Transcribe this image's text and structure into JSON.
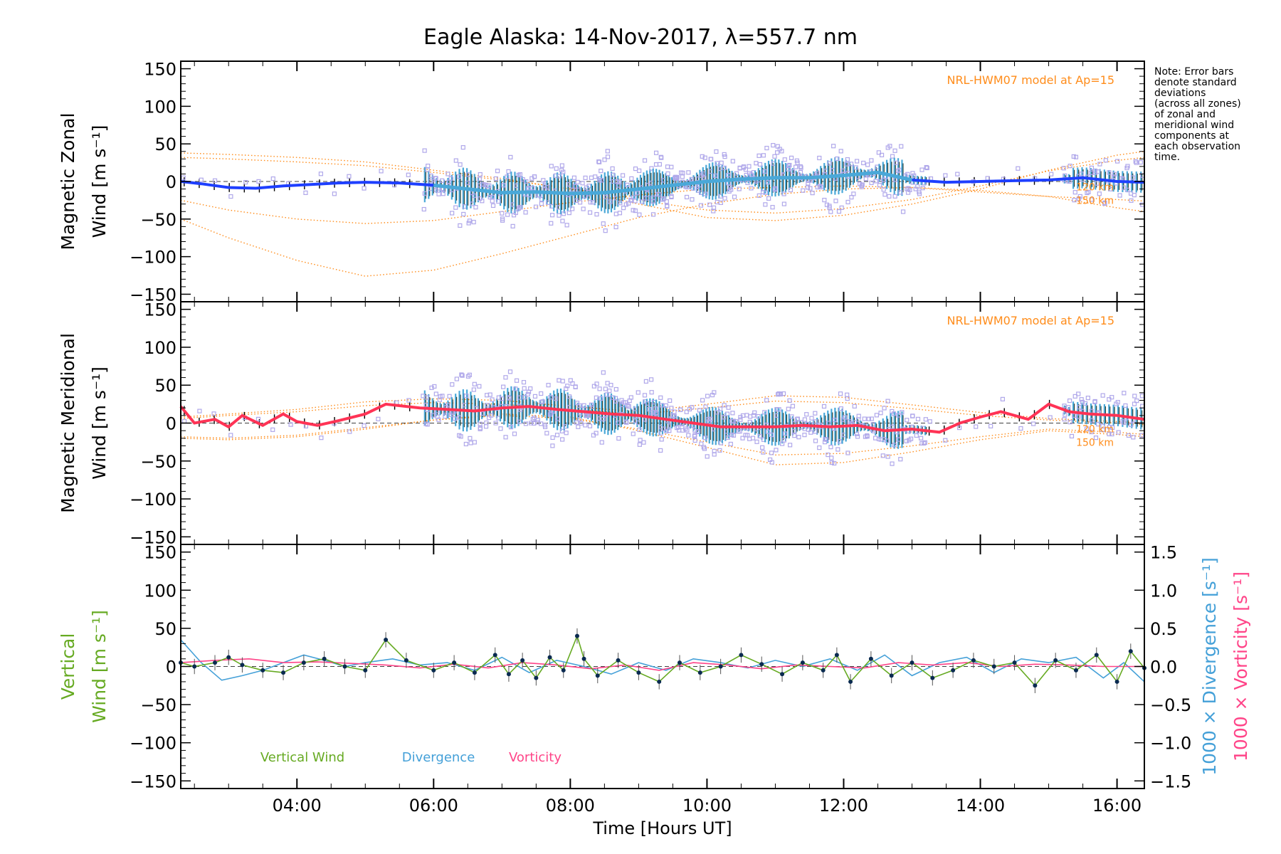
{
  "chart_data": {
    "type": "line",
    "title": "Eagle Alaska: 14-Nov-2017, λ=557.7 nm",
    "xlabel": "Time [Hours UT]",
    "xlim": [
      2.3,
      16.4
    ],
    "x_ticks": [
      4,
      6,
      8,
      10,
      12,
      14,
      16
    ],
    "x_tick_labels": [
      "04:00",
      "06:00",
      "08:00",
      "10:00",
      "12:00",
      "14:00",
      "16:00"
    ],
    "y_ticks": [
      -150,
      -100,
      -50,
      0,
      50,
      100,
      150
    ],
    "y_tick_labels": [
      "−150",
      "−100",
      "−50",
      "0",
      "50",
      "100",
      "150"
    ],
    "note_lines": [
      "Note: Error bars",
      "denote standard",
      "deviations",
      "(across all zones)",
      "of zonal and",
      "meridional wind",
      "components at",
      "each observation",
      "time."
    ],
    "colors": {
      "model": "#ff8c1a",
      "zonal_early": "#1e3fff",
      "zonal_late": "#4aa8d8",
      "meridional": "#ff3355",
      "zone_points": "#b0a8ea",
      "errorbar": "#000000",
      "vertical": "#66aa22",
      "divergence": "#44a0d8",
      "vorticity": "#ff4488",
      "dots": "#0a2a50"
    },
    "panels": [
      {
        "name": "zonal",
        "ylabel_line1": "Magnetic Zonal",
        "ylabel_line2": "Wind [m s⁻¹]",
        "ylim": [
          -160,
          160
        ],
        "model_label": "NRL-HWM07 model at Ap=15",
        "model_alt_labels": [
          "120 km",
          "150 km"
        ],
        "series": [
          {
            "role": "wind",
            "x": [
              2.3,
              2.6,
              3.0,
              3.4,
              3.8,
              4.2,
              4.6,
              5.0,
              5.5,
              6.0,
              6.5,
              7.0,
              7.5,
              8.0,
              8.5,
              9.0,
              9.5,
              10.0,
              10.5,
              11.0,
              11.5,
              12.0,
              12.5,
              13.0,
              13.5,
              14.0,
              14.5,
              15.0,
              15.5,
              16.0,
              16.4
            ],
            "y": [
              0,
              -3,
              -8,
              -9,
              -6,
              -4,
              -2,
              -1,
              -2,
              -5,
              -10,
              -15,
              -14,
              -16,
              -15,
              -10,
              -5,
              0,
              3,
              5,
              5,
              8,
              12,
              2,
              -1,
              0,
              1,
              2,
              5,
              0,
              -1
            ]
          },
          {
            "role": "model",
            "x": [
              2.3,
              3,
              4,
              5,
              6,
              7,
              8,
              9,
              10,
              11,
              12,
              13,
              14,
              15,
              16,
              16.4
            ],
            "y": [
              -50,
              -75,
              -105,
              -126,
              -118,
              -96,
              -72,
              -48,
              -30,
              -17,
              -10,
              -8,
              -12,
              -20,
              -35,
              -40
            ]
          },
          {
            "role": "model",
            "x": [
              2.3,
              3,
              4,
              5,
              6,
              7,
              8,
              9,
              10,
              11,
              12,
              13,
              14,
              15,
              16,
              16.4
            ],
            "y": [
              -25,
              -38,
              -50,
              -56,
              -52,
              -40,
              -28,
              -18,
              -10,
              -8,
              -6,
              -8,
              -14,
              -20,
              -24,
              -26
            ]
          },
          {
            "role": "model",
            "x": [
              2.3,
              3,
              4,
              5,
              6,
              7,
              8,
              9,
              10,
              11,
              12,
              13,
              14,
              15,
              16,
              16.4
            ],
            "y": [
              38,
              36,
              32,
              26,
              15,
              4,
              -10,
              -30,
              -48,
              -52,
              -45,
              -30,
              -10,
              15,
              35,
              40
            ]
          },
          {
            "role": "model",
            "x": [
              2.3,
              3,
              4,
              5,
              6,
              7,
              8,
              9,
              10,
              11,
              12,
              13,
              14,
              15,
              16,
              16.4
            ],
            "y": [
              32,
              30,
              26,
              21,
              12,
              2,
              -9,
              -25,
              -38,
              -42,
              -36,
              -24,
              -6,
              14,
              28,
              32
            ]
          }
        ]
      },
      {
        "name": "meridional",
        "ylabel_line1": "Magnetic Meridional",
        "ylabel_line2": "Wind [m s⁻¹]",
        "ylim": [
          -160,
          160
        ],
        "model_label": "NRL-HWM07 model at Ap=15",
        "model_alt_labels": [
          "120 km",
          "150 km"
        ],
        "series": [
          {
            "role": "wind",
            "x": [
              2.3,
              2.5,
              2.8,
              3.0,
              3.2,
              3.5,
              3.8,
              4.0,
              4.3,
              4.6,
              5.0,
              5.3,
              5.8,
              6.2,
              6.6,
              7.0,
              7.4,
              7.8,
              8.2,
              8.6,
              9.0,
              9.4,
              9.8,
              10.2,
              10.6,
              11.0,
              11.4,
              11.8,
              12.2,
              12.6,
              13.0,
              13.4,
              13.7,
              14.0,
              14.3,
              14.7,
              15.0,
              15.3,
              15.6,
              16.0,
              16.4
            ],
            "y": [
              22,
              0,
              5,
              -5,
              10,
              -3,
              12,
              2,
              -3,
              3,
              12,
              25,
              20,
              18,
              16,
              20,
              22,
              18,
              15,
              12,
              10,
              5,
              0,
              -5,
              -5,
              -5,
              -3,
              -5,
              -3,
              -10,
              -8,
              -12,
              0,
              8,
              15,
              5,
              25,
              15,
              12,
              10,
              5
            ]
          },
          {
            "role": "model",
            "x": [
              2.3,
              3,
              4,
              5,
              6,
              7,
              8,
              9,
              10,
              11,
              12,
              13,
              14,
              15,
              16,
              16.4
            ],
            "y": [
              -20,
              -22,
              -18,
              -8,
              4,
              12,
              8,
              -10,
              -32,
              -55,
              -52,
              -38,
              -22,
              -10,
              -15,
              -18
            ]
          },
          {
            "role": "model",
            "x": [
              2.3,
              3,
              4,
              5,
              6,
              7,
              8,
              9,
              10,
              11,
              12,
              13,
              14,
              15,
              16,
              16.4
            ],
            "y": [
              -18,
              -20,
              -16,
              -6,
              4,
              10,
              6,
              -8,
              -25,
              -42,
              -40,
              -30,
              -18,
              -8,
              -12,
              -15
            ]
          },
          {
            "role": "model",
            "x": [
              2.3,
              3,
              4,
              5,
              6,
              7,
              8,
              9,
              10,
              11,
              12,
              13,
              14,
              15,
              16,
              16.4
            ],
            "y": [
              8,
              12,
              18,
              28,
              32,
              30,
              22,
              15,
              25,
              36,
              34,
              24,
              14,
              6,
              2,
              0
            ]
          },
          {
            "role": "model",
            "x": [
              2.3,
              3,
              4,
              5,
              6,
              7,
              8,
              9,
              10,
              11,
              12,
              13,
              14,
              15,
              16,
              16.4
            ],
            "y": [
              6,
              10,
              15,
              23,
              27,
              25,
              18,
              12,
              20,
              29,
              27,
              19,
              10,
              4,
              0,
              -2
            ]
          }
        ]
      },
      {
        "name": "vertical",
        "ylabel_line1": "Vertical",
        "ylabel_line2": "Wind [m s⁻¹]",
        "ylim": [
          -160,
          160
        ],
        "right_axis": {
          "ylim": [
            -1.6,
            1.6
          ],
          "ticks": [
            -1.5,
            -1.0,
            -0.5,
            0.0,
            0.5,
            1.0,
            1.5
          ],
          "tick_labels": [
            "−1.5",
            "−1.0",
            "−0.5",
            "0.0",
            "0.5",
            "1.0",
            "1.5"
          ],
          "label_divergence": "1000 × Divergence [s⁻¹]",
          "label_vorticity": "1000 × Vorticity [s⁻¹]"
        },
        "legend": [
          "Vertical Wind",
          "Divergence",
          "Vorticity"
        ],
        "series": [
          {
            "name": "Vertical Wind",
            "x": [
              2.3,
              2.5,
              2.8,
              3.0,
              3.2,
              3.5,
              3.8,
              4.1,
              4.4,
              4.7,
              5.0,
              5.3,
              5.6,
              6.0,
              6.3,
              6.6,
              6.9,
              7.1,
              7.3,
              7.5,
              7.7,
              7.9,
              8.1,
              8.2,
              8.4,
              8.7,
              9.0,
              9.3,
              9.6,
              9.9,
              10.2,
              10.5,
              10.8,
              11.1,
              11.4,
              11.7,
              11.9,
              12.1,
              12.4,
              12.7,
              13.0,
              13.3,
              13.6,
              13.9,
              14.2,
              14.5,
              14.8,
              15.1,
              15.4,
              15.7,
              16.0,
              16.2,
              16.4
            ],
            "y": [
              5,
              0,
              5,
              12,
              2,
              -5,
              -8,
              5,
              10,
              0,
              -5,
              35,
              8,
              -5,
              5,
              -8,
              15,
              -10,
              8,
              -15,
              12,
              -5,
              40,
              10,
              -12,
              8,
              -8,
              -20,
              5,
              -8,
              0,
              15,
              3,
              -10,
              5,
              -5,
              15,
              -20,
              10,
              -12,
              5,
              -15,
              -5,
              8,
              0,
              5,
              -25,
              8,
              -5,
              15,
              -20,
              20,
              -2
            ]
          },
          {
            "name": "Divergence",
            "x": [
              2.3,
              2.6,
              2.9,
              3.2,
              3.5,
              3.8,
              4.1,
              4.4,
              4.7,
              5.0,
              5.4,
              5.8,
              6.2,
              6.6,
              7.0,
              7.4,
              7.8,
              8.2,
              8.6,
              9.0,
              9.4,
              9.8,
              10.2,
              10.6,
              11.0,
              11.4,
              11.8,
              12.2,
              12.6,
              13.0,
              13.4,
              13.8,
              14.2,
              14.6,
              15.0,
              15.4,
              15.8,
              16.1,
              16.4
            ],
            "y": [
              0.35,
              0.05,
              -0.18,
              -0.12,
              -0.05,
              0.05,
              0.15,
              0.08,
              0.0,
              0.05,
              0.1,
              0.02,
              0.05,
              -0.05,
              0.12,
              -0.08,
              0.08,
              0.0,
              -0.1,
              0.05,
              -0.05,
              0.1,
              0.05,
              -0.02,
              0.08,
              0.0,
              0.1,
              -0.05,
              0.15,
              -0.12,
              0.05,
              0.12,
              -0.08,
              0.1,
              0.05,
              0.12,
              -0.15,
              0.05,
              -0.2
            ]
          },
          {
            "name": "Vorticity",
            "x": [
              2.3,
              2.8,
              3.3,
              3.8,
              4.3,
              4.8,
              5.3,
              5.8,
              6.3,
              6.8,
              7.3,
              7.8,
              8.3,
              8.8,
              9.3,
              9.8,
              10.3,
              10.8,
              11.3,
              11.8,
              12.3,
              12.8,
              13.3,
              13.8,
              14.3,
              14.8,
              15.3,
              15.8,
              16.4
            ],
            "y": [
              0.05,
              0.08,
              0.1,
              0.05,
              0.06,
              0.04,
              0.02,
              -0.02,
              0.03,
              -0.02,
              0.05,
              0.02,
              -0.03,
              0.02,
              -0.05,
              0.05,
              0.02,
              -0.03,
              0.02,
              0.0,
              -0.02,
              0.05,
              0.02,
              0.05,
              0.0,
              0.03,
              0.02,
              0.0,
              0.0
            ]
          }
        ]
      }
    ]
  }
}
